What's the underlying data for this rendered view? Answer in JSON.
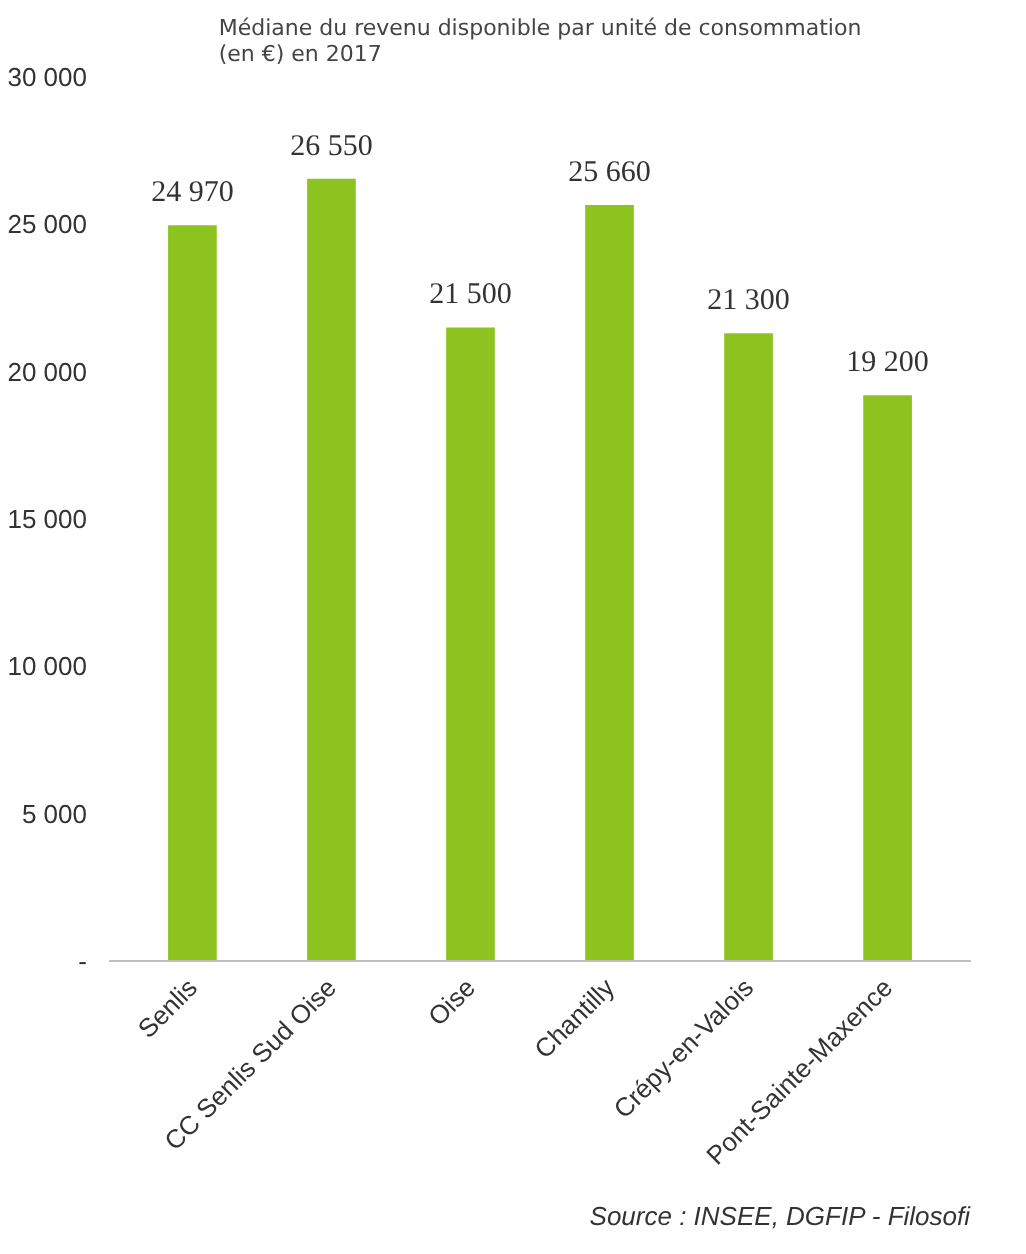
{
  "chart_data": {
    "type": "bar",
    "title": "Médiane du revenu disponible par unité de consommation (en €) en 2017",
    "categories": [
      "Senlis",
      "CC Senlis Sud Oise",
      "Oise",
      "Chantilly",
      "Crépy-en-Valois",
      "Pont-Sainte-Maxence"
    ],
    "values": [
      24970,
      26550,
      21500,
      25660,
      21300,
      19200
    ],
    "value_labels": [
      "24 970",
      "26 550",
      "21 500",
      "25 660",
      "21 300",
      "19 200"
    ],
    "color": "#8cc31f",
    "ylim": [
      0,
      30000
    ],
    "yticks": [
      {
        "value": 0,
        "label": "-"
      },
      {
        "value": 5000,
        "label": "5 000"
      },
      {
        "value": 10000,
        "label": "10 000"
      },
      {
        "value": 15000,
        "label": "15 000"
      },
      {
        "value": 20000,
        "label": "20 000"
      },
      {
        "value": 25000,
        "label": "25 000"
      },
      {
        "value": 30000,
        "label": "30 000"
      }
    ],
    "grid": false,
    "annotations": [
      "Source : INSEE, DGFIP - Filosofi"
    ]
  }
}
